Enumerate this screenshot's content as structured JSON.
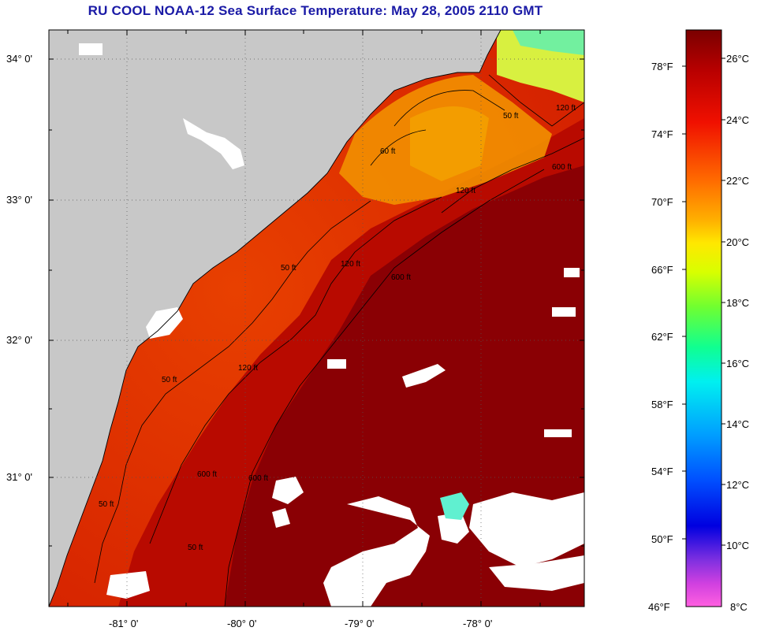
{
  "title": "RU COOL  NOAA-12  Sea Surface Temperature:  May 28, 2005 2110 GMT",
  "lat_labels": [
    "34° 0'",
    "33° 0'",
    "32° 0'",
    "31° 0'"
  ],
  "lon_labels": [
    "-81° 0'",
    "-80° 0'",
    "-79° 0'",
    "-78° 0'"
  ],
  "contour_labels": [
    "50 ft",
    "50 ft",
    "120 ft",
    "600 ft",
    "50 ft",
    "120 ft",
    "600 ft",
    "60 ft",
    "120 ft",
    "120 ft",
    "600 ft",
    "50 ft",
    "50 ft",
    "600 ft"
  ],
  "colorbar": {
    "fahrenheit": [
      "78°F",
      "74°F",
      "70°F",
      "66°F",
      "62°F",
      "58°F",
      "54°F",
      "50°F",
      "46°F"
    ],
    "celsius": [
      "26°C",
      "24°C",
      "22°C",
      "20°C",
      "18°C",
      "16°C",
      "14°C",
      "12°C",
      "10°C",
      "8°C"
    ]
  },
  "colors": {
    "land": "#c8c8c8",
    "cloud": "#ffffff",
    "warm_max": "#7a0000",
    "title": "#1a1aa6"
  }
}
